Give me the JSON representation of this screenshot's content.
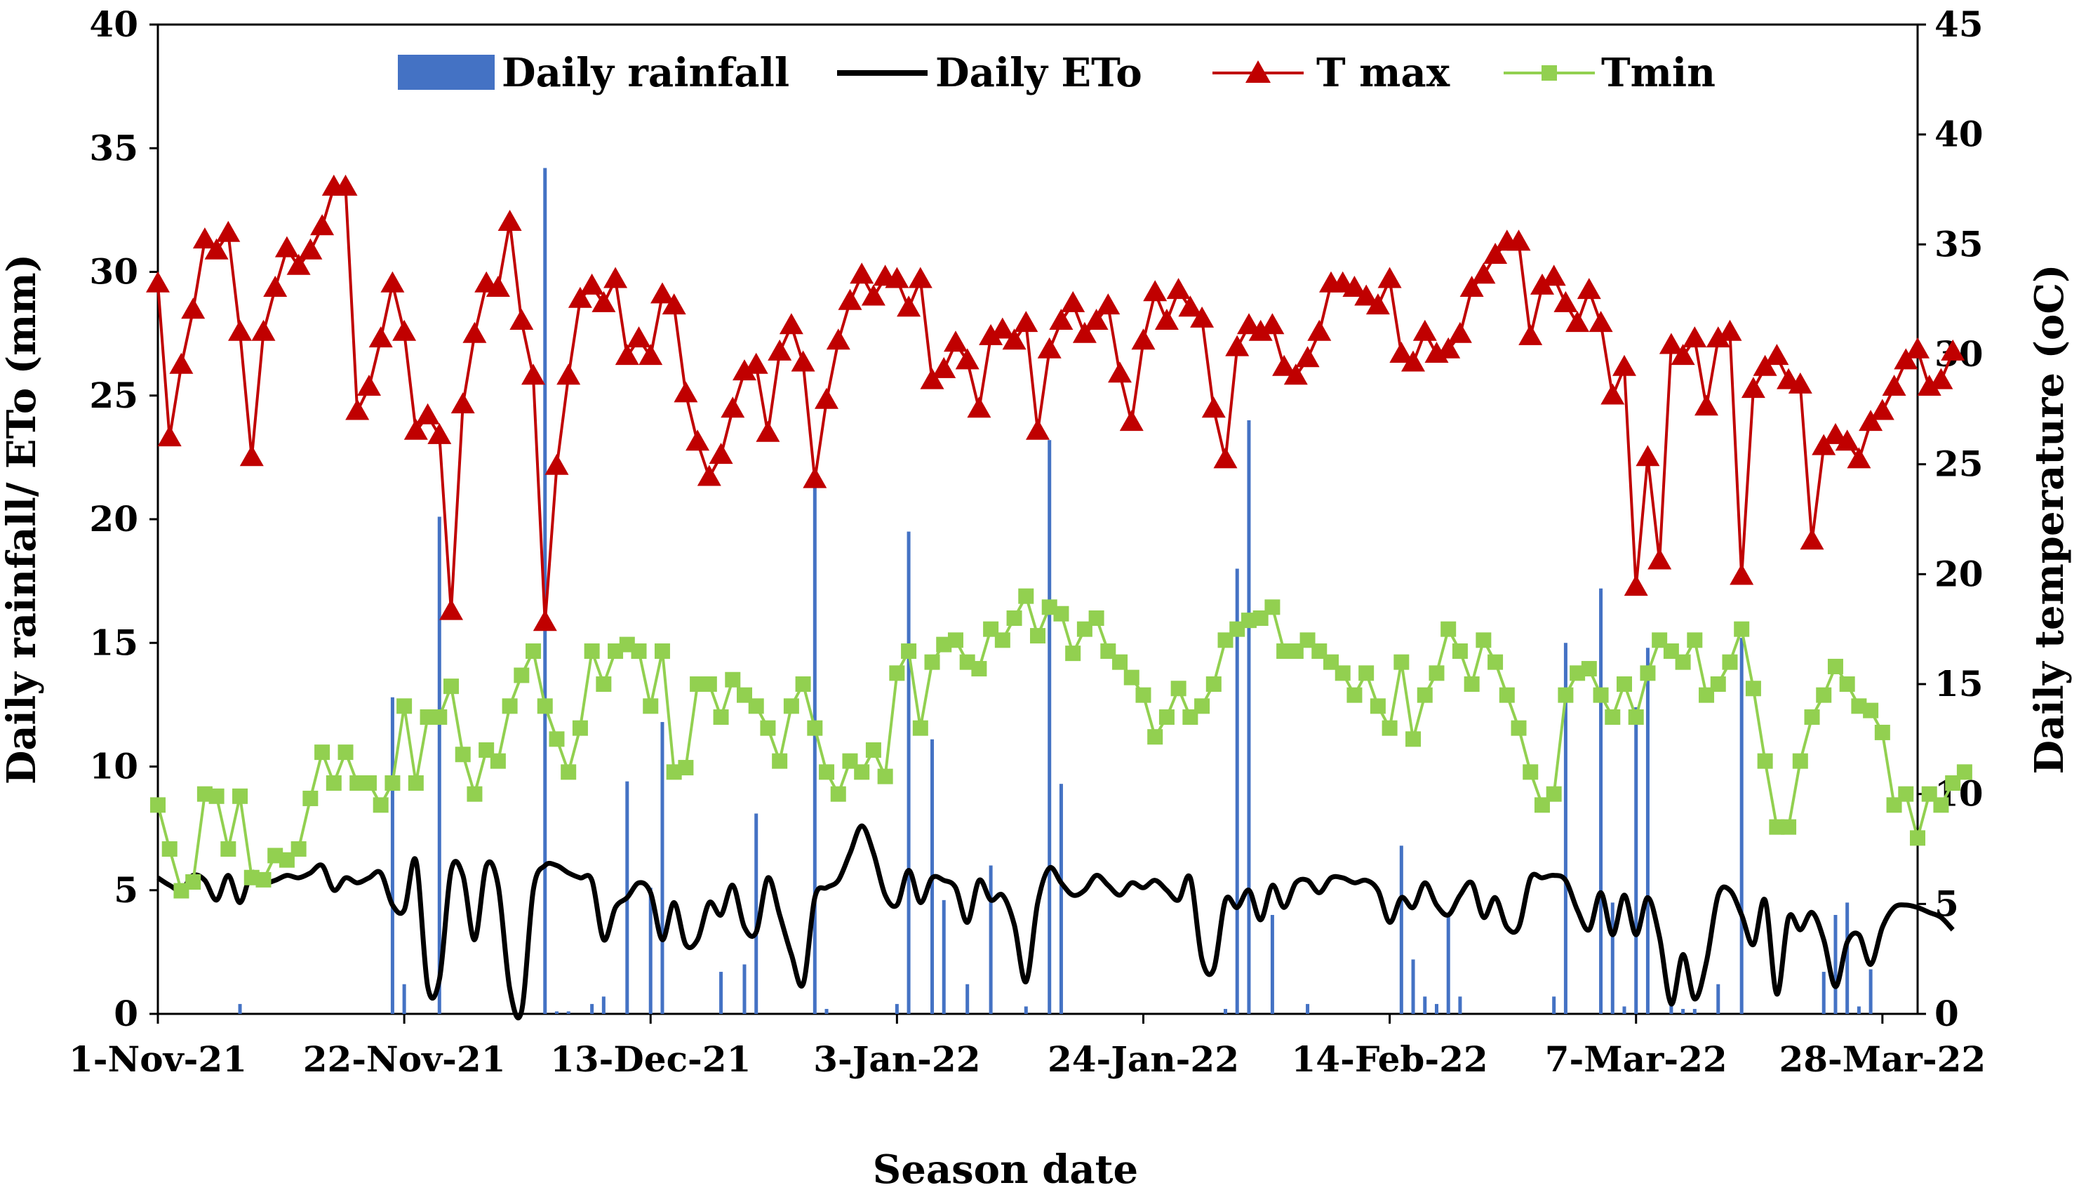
{
  "chart_data": {
    "type": "combo",
    "title": "",
    "xlabel": "Season date",
    "ylabel_left": "Daily rainfall/ ETo (mm)",
    "ylabel_right": "Daily temperature (oC)",
    "ylim_left": [
      0,
      40
    ],
    "ylim_right": [
      0,
      45
    ],
    "yticks_left": [
      0,
      5,
      10,
      15,
      20,
      25,
      30,
      35,
      40
    ],
    "yticks_right": [
      0,
      5,
      10,
      15,
      20,
      25,
      30,
      35,
      40,
      45
    ],
    "x_start": "1-Nov-21",
    "num_days": 151,
    "x_ticks": [
      {
        "label": "1-Nov-21",
        "day": 0
      },
      {
        "label": "22-Nov-21",
        "day": 21
      },
      {
        "label": "13-Dec-21",
        "day": 42
      },
      {
        "label": "3-Jan-22",
        "day": 63
      },
      {
        "label": "24-Jan-22",
        "day": 84
      },
      {
        "label": "14-Feb-22",
        "day": 105
      },
      {
        "label": "7-Mar-22",
        "day": 126
      },
      {
        "label": "28-Mar-22",
        "day": 147
      }
    ],
    "legend_position": "top",
    "grid": false,
    "series": [
      {
        "name": "Daily rainfall",
        "type": "bar",
        "axis": "left",
        "color": "#4472C4"
      },
      {
        "name": "Daily ETo",
        "type": "line",
        "axis": "left",
        "color": "#000000"
      },
      {
        "name": "T max",
        "type": "line",
        "axis": "right",
        "color": "#C00000",
        "marker": "triangle",
        "marker_color": "#C00000"
      },
      {
        "name": "Tmin",
        "type": "line",
        "axis": "right",
        "color": "#92D050",
        "marker": "square",
        "marker_color": "#92D050"
      }
    ],
    "rainfall": [
      [
        7,
        0.4
      ],
      [
        20,
        12.8
      ],
      [
        21,
        1.2
      ],
      [
        24,
        20.1
      ],
      [
        33,
        34.2
      ],
      [
        34,
        0.1
      ],
      [
        35,
        0.1
      ],
      [
        37,
        0.4
      ],
      [
        38,
        0.7
      ],
      [
        40,
        9.4
      ],
      [
        42,
        5.1
      ],
      [
        43,
        11.8
      ],
      [
        48,
        1.7
      ],
      [
        50,
        2.0
      ],
      [
        51,
        8.1
      ],
      [
        56,
        21.4
      ],
      [
        57,
        0.2
      ],
      [
        63,
        0.4
      ],
      [
        64,
        19.5
      ],
      [
        66,
        11.1
      ],
      [
        67,
        4.6
      ],
      [
        69,
        1.2
      ],
      [
        71,
        6.0
      ],
      [
        74,
        0.3
      ],
      [
        76,
        23.2
      ],
      [
        77,
        9.3
      ],
      [
        91,
        0.2
      ],
      [
        92,
        18.0
      ],
      [
        93,
        24.0
      ],
      [
        95,
        4.0
      ],
      [
        98,
        0.4
      ],
      [
        106,
        6.8
      ],
      [
        107,
        2.2
      ],
      [
        108,
        0.7
      ],
      [
        109,
        0.4
      ],
      [
        110,
        4.0
      ],
      [
        111,
        0.7
      ],
      [
        119,
        0.7
      ],
      [
        120,
        15.0
      ],
      [
        123,
        17.2
      ],
      [
        124,
        4.5
      ],
      [
        125,
        0.3
      ],
      [
        126,
        12.4
      ],
      [
        127,
        14.8
      ],
      [
        129,
        0.4
      ],
      [
        130,
        0.2
      ],
      [
        131,
        0.2
      ],
      [
        133,
        1.2
      ],
      [
        135,
        15.2
      ],
      [
        142,
        1.7
      ],
      [
        143,
        4.0
      ],
      [
        144,
        4.5
      ],
      [
        145,
        0.3
      ],
      [
        146,
        1.8
      ]
    ],
    "eto": [
      5.5,
      5.2,
      5.0,
      5.6,
      5.4,
      4.6,
      5.6,
      4.5,
      5.7,
      5.3,
      5.4,
      5.6,
      5.5,
      5.7,
      6.0,
      5.0,
      5.5,
      5.3,
      5.5,
      5.7,
      4.4,
      4.2,
      6.2,
      1.1,
      1.4,
      5.8,
      5.6,
      3.0,
      6.0,
      5.2,
      1.0,
      0.1,
      5.0,
      6.0,
      6.0,
      5.7,
      5.5,
      5.4,
      3.0,
      4.3,
      4.7,
      5.3,
      4.9,
      3.0,
      4.5,
      2.8,
      3.0,
      4.5,
      4.0,
      5.2,
      3.5,
      3.3,
      5.5,
      4.0,
      2.4,
      1.2,
      4.7,
      5.1,
      5.4,
      6.5,
      7.6,
      6.5,
      4.8,
      4.4,
      5.8,
      4.5,
      5.5,
      5.4,
      5.1,
      3.7,
      5.4,
      4.6,
      4.8,
      3.6,
      1.3,
      4.5,
      5.9,
      5.3,
      4.8,
      5.0,
      5.6,
      5.2,
      4.8,
      5.3,
      5.1,
      5.4,
      5.0,
      4.6,
      5.5,
      2.2,
      1.8,
      4.6,
      4.3,
      5.0,
      3.8,
      5.2,
      4.3,
      5.3,
      5.4,
      4.9,
      5.5,
      5.5,
      5.3,
      5.4,
      5.0,
      3.7,
      4.7,
      4.3,
      5.3,
      4.4,
      4.0,
      4.8,
      5.3,
      3.9,
      4.7,
      3.5,
      3.5,
      5.5,
      5.5,
      5.6,
      5.4,
      4.2,
      3.4,
      4.9,
      3.2,
      4.8,
      3.2,
      4.7,
      3.1,
      0.4,
      2.4,
      0.6,
      2.1,
      4.8,
      5.0,
      4.0,
      2.8,
      4.6,
      0.8,
      3.9,
      3.4,
      4.1,
      3.0,
      1.1,
      2.9,
      3.2,
      2.0,
      3.5,
      4.3,
      4.4,
      4.3,
      4.1,
      3.9,
      3.4
    ],
    "tmax": [
      33.2,
      26.2,
      29.5,
      32.0,
      35.2,
      34.7,
      35.5,
      31.0,
      25.3,
      31.0,
      33.0,
      34.8,
      34.0,
      34.7,
      35.8,
      37.6,
      37.6,
      27.4,
      28.5,
      30.7,
      33.2,
      31.0,
      26.5,
      27.2,
      26.3,
      18.3,
      27.7,
      30.9,
      33.2,
      33.0,
      36.0,
      31.5,
      29.0,
      17.8,
      24.9,
      29.0,
      32.5,
      33.1,
      32.3,
      33.4,
      29.9,
      30.7,
      29.9,
      32.7,
      32.2,
      28.2,
      26.0,
      24.4,
      25.4,
      27.5,
      29.2,
      29.5,
      26.4,
      30.1,
      31.3,
      29.6,
      24.3,
      27.9,
      30.6,
      32.4,
      33.6,
      32.6,
      33.5,
      33.4,
      32.1,
      33.4,
      28.8,
      29.3,
      30.5,
      29.7,
      27.5,
      30.8,
      31.1,
      30.6,
      31.4,
      26.5,
      30.2,
      31.5,
      32.3,
      30.9,
      31.5,
      32.2,
      29.1,
      26.9,
      30.6,
      32.8,
      31.5,
      32.9,
      32.1,
      31.6,
      27.5,
      25.2,
      30.3,
      31.3,
      31.0,
      31.3,
      29.4,
      29.0,
      29.8,
      31.0,
      33.2,
      33.2,
      33.0,
      32.6,
      32.2,
      33.4,
      30.0,
      29.6,
      31.0,
      30.0,
      30.2,
      30.9,
      33.0,
      33.6,
      34.5,
      35.1,
      35.1,
      30.8,
      33.1,
      33.5,
      32.3,
      31.4,
      32.9,
      31.4,
      28.1,
      29.4,
      19.4,
      25.3,
      20.6,
      30.4,
      29.9,
      30.7,
      27.6,
      30.7,
      31.0,
      19.9,
      28.4,
      29.4,
      29.9,
      28.8,
      28.6,
      21.5,
      25.8,
      26.3,
      26.0,
      25.2,
      26.9,
      27.4,
      28.5,
      29.7,
      30.2,
      28.5,
      28.8,
      30.1
    ],
    "tmin": [
      9.5,
      7.5,
      5.6,
      6.0,
      10.0,
      9.9,
      7.5,
      9.9,
      6.2,
      6.1,
      7.2,
      7.0,
      7.5,
      9.8,
      11.9,
      10.5,
      11.9,
      10.5,
      10.5,
      9.5,
      10.5,
      14.0,
      10.5,
      13.5,
      13.5,
      14.9,
      11.8,
      10.0,
      12.0,
      11.5,
      14.0,
      15.4,
      16.5,
      14.0,
      12.5,
      11.0,
      13.0,
      16.5,
      15.0,
      16.5,
      16.8,
      16.5,
      14.0,
      16.5,
      11.0,
      11.2,
      15.0,
      15.0,
      13.5,
      15.2,
      14.5,
      14.0,
      13.0,
      11.5,
      14.0,
      15.0,
      13.0,
      11.0,
      10.0,
      11.5,
      11.0,
      12.0,
      10.8,
      15.5,
      16.5,
      13.0,
      16.0,
      16.8,
      17.0,
      16.0,
      15.7,
      17.5,
      17.0,
      18.0,
      19.0,
      17.2,
      18.5,
      18.2,
      16.4,
      17.5,
      18.0,
      16.5,
      16.0,
      15.3,
      14.5,
      12.6,
      13.5,
      14.8,
      13.5,
      14.0,
      15.0,
      17.0,
      17.5,
      17.9,
      18.0,
      18.5,
      16.5,
      16.5,
      17.0,
      16.5,
      16.0,
      15.5,
      14.5,
      15.5,
      14.0,
      13.0,
      16.0,
      12.5,
      14.5,
      15.5,
      17.5,
      16.5,
      15.0,
      17.0,
      16.0,
      14.5,
      13.0,
      11.0,
      9.5,
      10.0,
      14.5,
      15.5,
      15.7,
      14.5,
      13.5,
      15.0,
      13.5,
      15.5,
      17.0,
      16.5,
      16.0,
      17.0,
      14.5,
      15.0,
      16.0,
      17.5,
      14.8,
      11.5,
      8.5,
      8.5,
      11.5,
      13.5,
      14.5,
      15.8,
      15.0,
      14.0,
      13.8,
      12.8,
      9.5,
      10.0,
      8.0,
      10.0,
      9.5,
      10.5,
      11.0
    ]
  }
}
